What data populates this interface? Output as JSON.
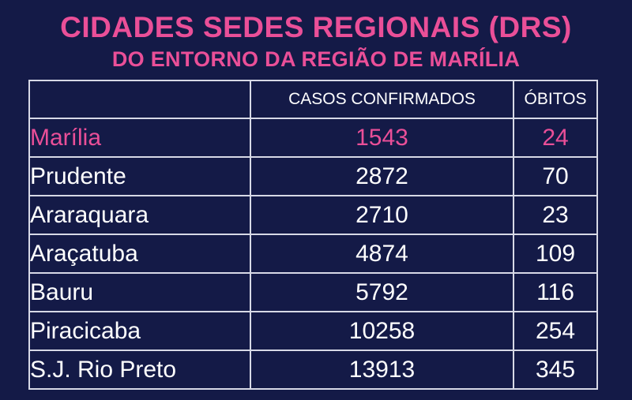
{
  "title": "CIDADES SEDES REGIONAIS (DRS)",
  "subtitle": "DO ENTORNO DA REGIÃO DE MARÍLIA",
  "colors": {
    "background": "#141a47",
    "accent": "#ea4f98",
    "text": "#ffffff",
    "grid": "#d7d9e6"
  },
  "table": {
    "headers": [
      "",
      "CASOS CONFIRMADOS",
      "ÓBITOS"
    ],
    "rows": [
      {
        "city": "Marília",
        "cases": "1543",
        "deaths": "24",
        "highlight": true
      },
      {
        "city": "Prudente",
        "cases": "2872",
        "deaths": "70"
      },
      {
        "city": "Araraquara",
        "cases": "2710",
        "deaths": "23"
      },
      {
        "city": "Araçatuba",
        "cases": "4874",
        "deaths": "109"
      },
      {
        "city": "Bauru",
        "cases": "5792",
        "deaths": "116"
      },
      {
        "city": "Piracicaba",
        "cases": "10258",
        "deaths": "254"
      },
      {
        "city": "S.J. Rio Preto",
        "cases": "13913",
        "deaths": "345"
      }
    ]
  }
}
